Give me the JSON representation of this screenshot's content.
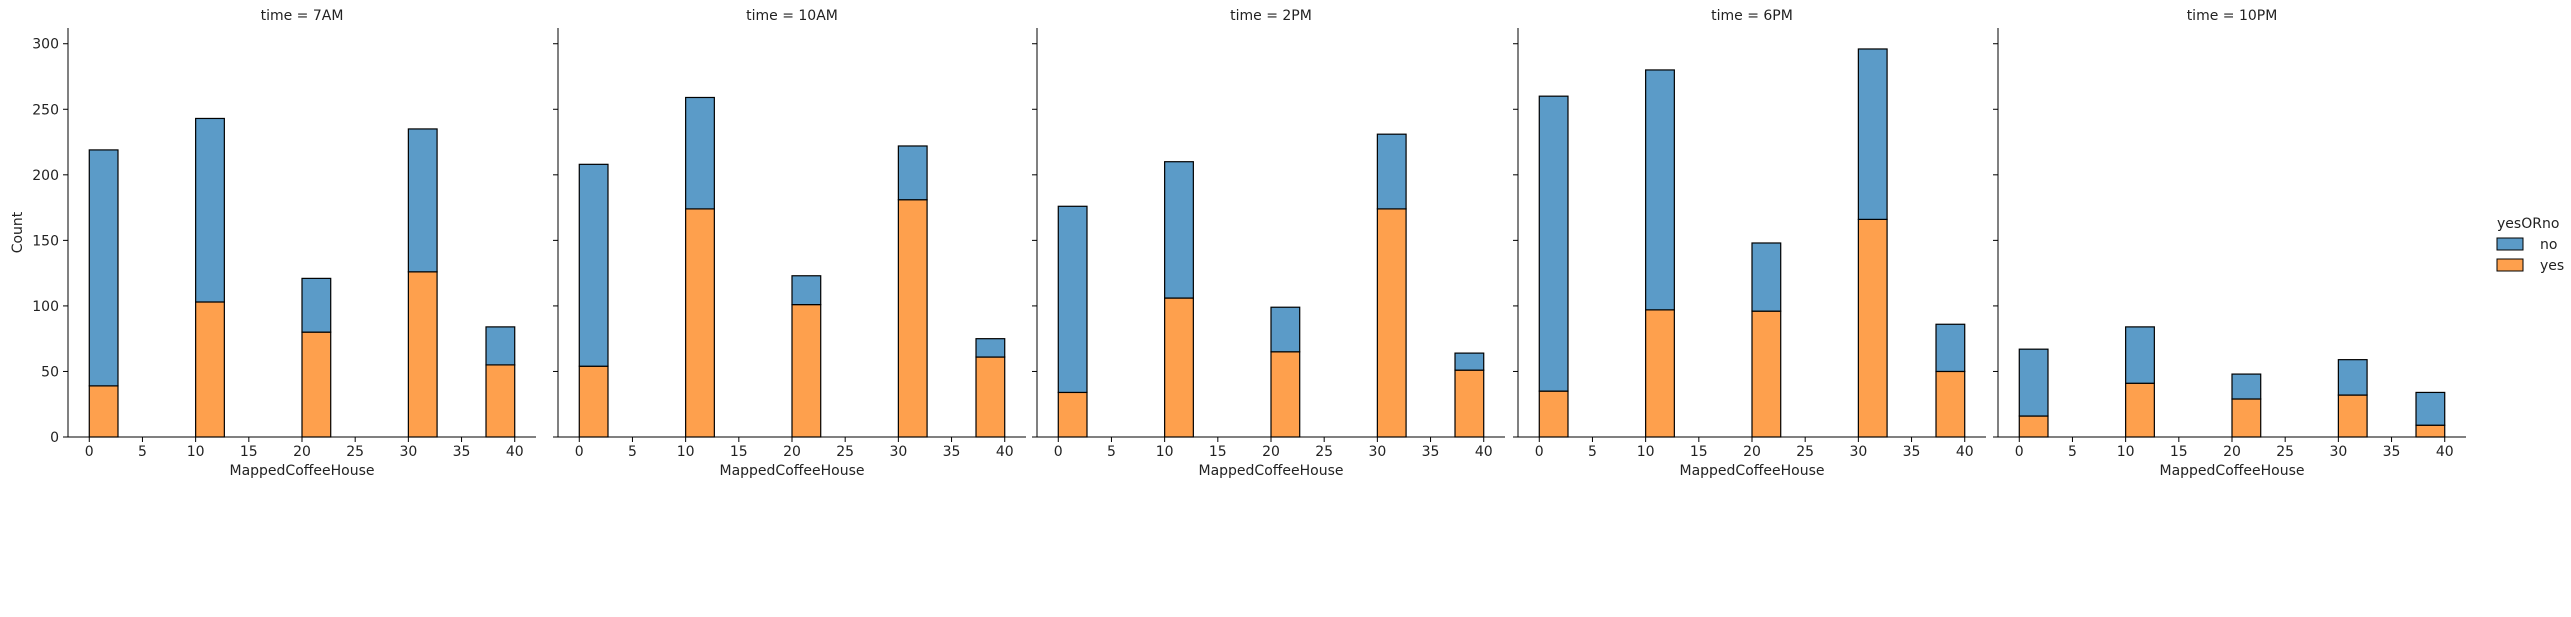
{
  "chart_data": {
    "type": "bar",
    "stacked": true,
    "ylabel": "Count",
    "xlabel": "MappedCoffeeHouse",
    "ylim": [
      0,
      312
    ],
    "xlim": [
      -2,
      42
    ],
    "x_ticks": [
      0,
      5,
      10,
      15,
      20,
      25,
      30,
      35,
      40
    ],
    "y_ticks": [
      0,
      50,
      100,
      150,
      200,
      250,
      300
    ],
    "bin_edges": [
      [
        0,
        2.7
      ],
      [
        10,
        12.7
      ],
      [
        20,
        22.7
      ],
      [
        30,
        32.7
      ],
      [
        37.3,
        40
      ]
    ],
    "legend": {
      "title": "yesORno",
      "position": "right",
      "entries": [
        {
          "label": "no",
          "color": "#5b9bc8"
        },
        {
          "label": "yes",
          "color": "#fea04d"
        }
      ]
    },
    "panels": [
      {
        "title": "time = 7AM",
        "no": [
          180,
          140,
          41,
          109,
          29
        ],
        "yes": [
          39,
          103,
          80,
          126,
          55
        ]
      },
      {
        "title": "time = 10AM",
        "no": [
          154,
          85,
          22,
          41,
          14
        ],
        "yes": [
          54,
          174,
          101,
          181,
          61
        ]
      },
      {
        "title": "time = 2PM",
        "no": [
          142,
          104,
          34,
          57,
          13
        ],
        "yes": [
          34,
          106,
          65,
          174,
          51
        ]
      },
      {
        "title": "time = 6PM",
        "no": [
          225,
          183,
          52,
          130,
          36
        ],
        "yes": [
          35,
          97,
          96,
          166,
          50
        ]
      },
      {
        "title": "time = 10PM",
        "no": [
          51,
          43,
          19,
          27,
          25
        ],
        "yes": [
          16,
          41,
          29,
          32,
          9
        ]
      }
    ]
  }
}
